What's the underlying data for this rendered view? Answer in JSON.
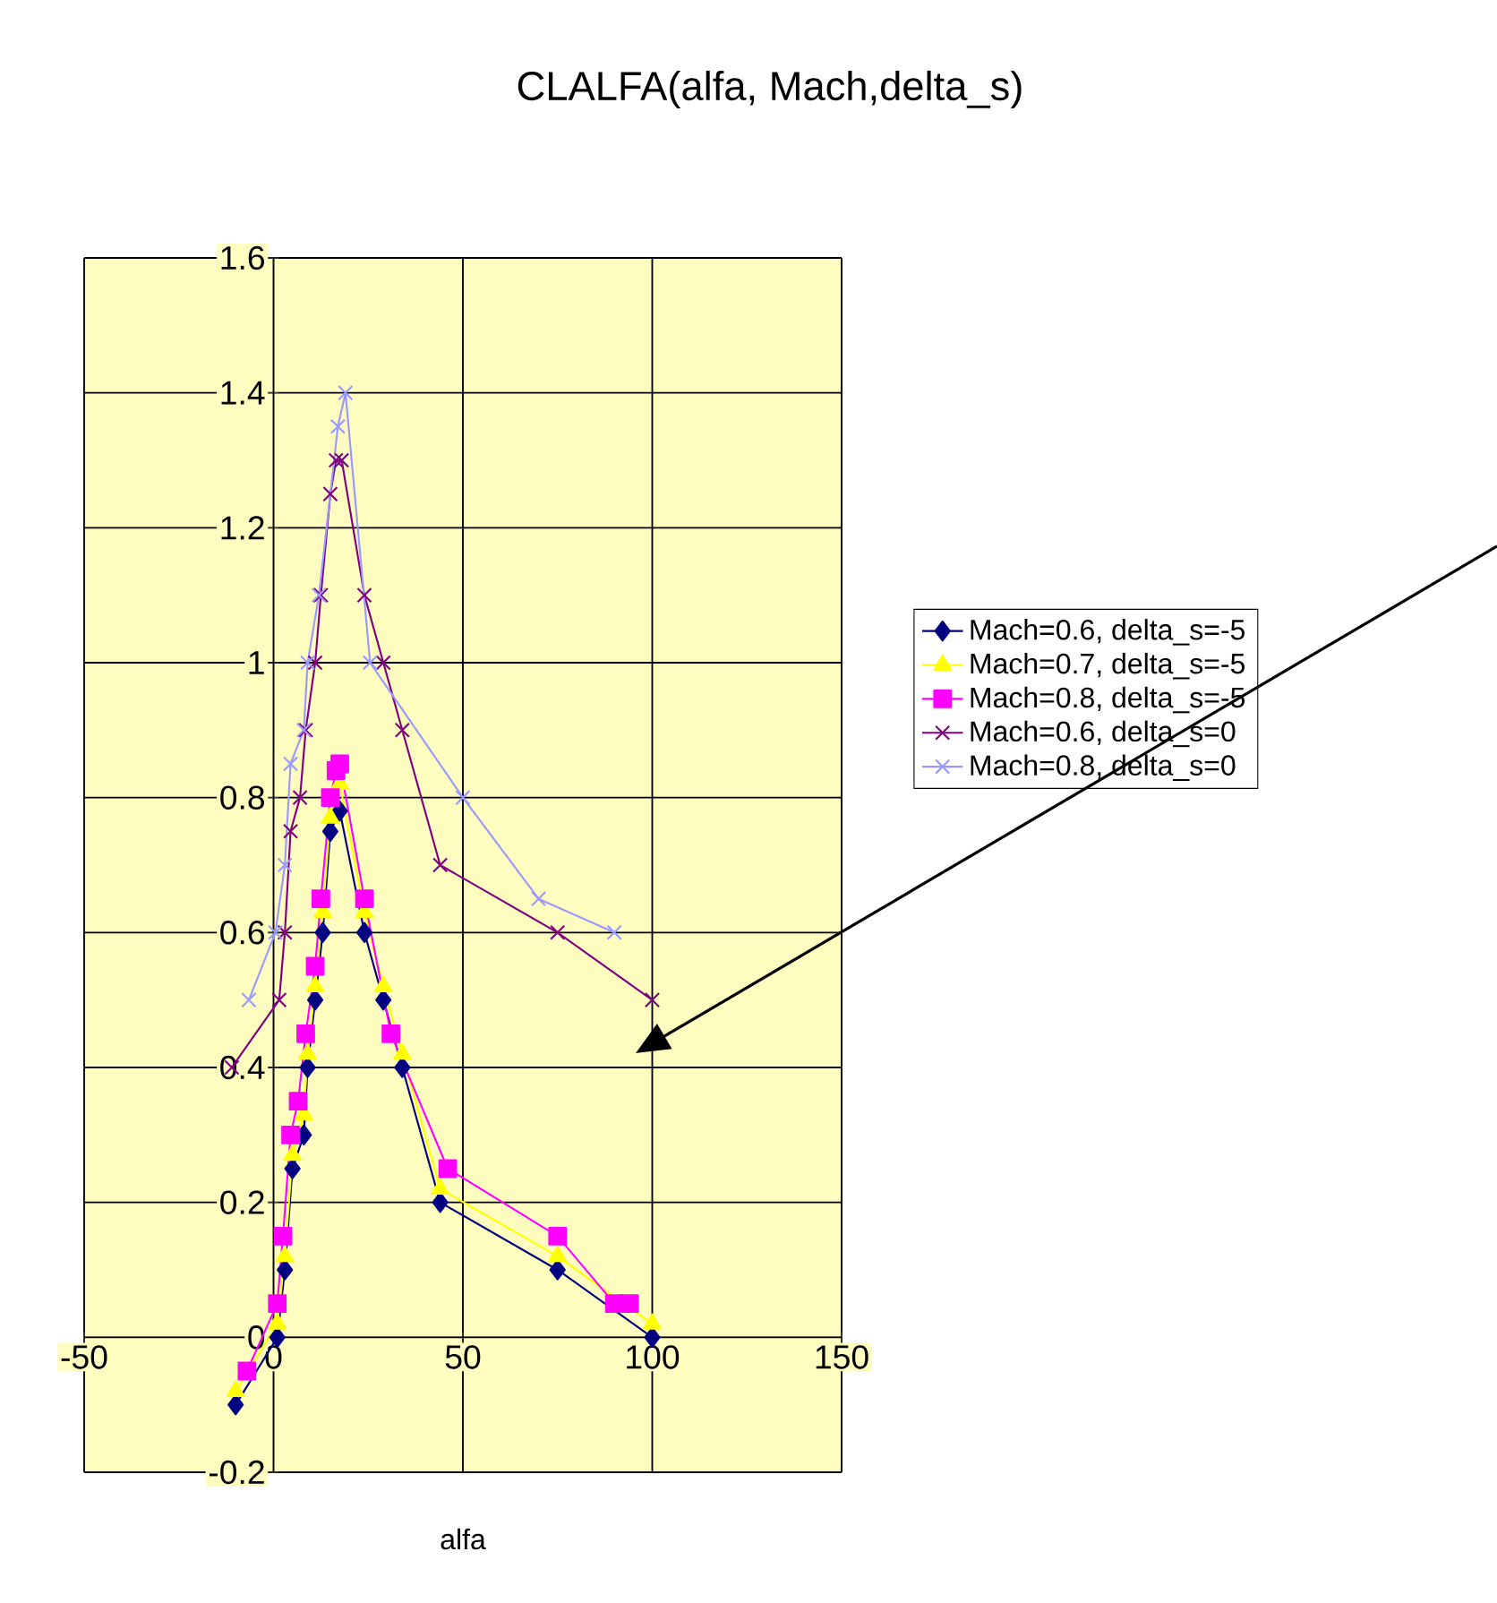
{
  "chart_data": {
    "type": "line",
    "title": "CLALFA(alfa, Mach,delta_s)",
    "xlabel": "alfa",
    "xlim": [
      -50,
      150
    ],
    "xticks": [
      -50,
      0,
      50,
      100,
      150
    ],
    "ylim": [
      -0.2,
      1.6
    ],
    "yticks": [
      -0.2,
      0,
      0.2,
      0.4,
      0.6,
      0.8,
      1,
      1.2,
      1.4,
      1.6
    ],
    "grid": true,
    "legend": "right",
    "series": [
      {
        "name": "Mach=0.6, delta_s=-5",
        "color": "#000080",
        "marker": "diamond",
        "x": [
          -10,
          1,
          3,
          5,
          8,
          9,
          11,
          13,
          15,
          17.5,
          24,
          29,
          34,
          44,
          75,
          100
        ],
        "values": [
          -0.1,
          0,
          0.1,
          0.25,
          0.3,
          0.4,
          0.5,
          0.6,
          0.75,
          0.78,
          0.6,
          0.5,
          0.4,
          0.2,
          0.1,
          0
        ]
      },
      {
        "name": "Mach=0.7, delta_s=-5",
        "color": "#FFFF00",
        "marker": "triangle",
        "x": [
          -10,
          1,
          3,
          5,
          8,
          9,
          11,
          13,
          15,
          17.5,
          24,
          29,
          34,
          44,
          75,
          100
        ],
        "values": [
          -0.08,
          0.02,
          0.12,
          0.27,
          0.33,
          0.42,
          0.52,
          0.63,
          0.77,
          0.82,
          0.63,
          0.52,
          0.42,
          0.22,
          0.12,
          0.02
        ]
      },
      {
        "name": "Mach=0.8, delta_s=-5",
        "color": "#FF00FF",
        "marker": "square",
        "x": [
          -7,
          1,
          2.5,
          4.5,
          6.5,
          8.5,
          11,
          12.5,
          15,
          16.5,
          17.5,
          24,
          31,
          46,
          75,
          90,
          94
        ],
        "values": [
          -0.05,
          0.05,
          0.15,
          0.3,
          0.35,
          0.45,
          0.55,
          0.65,
          0.8,
          0.84,
          0.85,
          0.65,
          0.45,
          0.25,
          0.15,
          0.05,
          0.05
        ]
      },
      {
        "name": "Mach=0.6, delta_s=0",
        "color": "#800080",
        "marker": "cross",
        "x": [
          -11,
          1.5,
          3,
          4.5,
          7,
          8.5,
          11,
          12.5,
          15,
          16.5,
          18,
          24,
          29,
          34,
          44,
          75,
          100
        ],
        "values": [
          0.4,
          0.5,
          0.6,
          0.75,
          0.8,
          0.9,
          1.0,
          1.1,
          1.25,
          1.3,
          1.3,
          1.1,
          1.0,
          0.9,
          0.7,
          0.6,
          0.5
        ]
      },
      {
        "name": "Mach=0.8, delta_s=0",
        "color": "#9999FF",
        "marker": "cross",
        "x": [
          -6.5,
          0.5,
          3,
          4.5,
          8,
          9,
          12,
          17,
          19,
          25.5,
          50,
          70,
          90
        ],
        "values": [
          0.5,
          0.6,
          0.7,
          0.85,
          0.9,
          1.0,
          1.1,
          1.35,
          1.4,
          1.0,
          0.8,
          0.65,
          0.6
        ]
      }
    ]
  }
}
